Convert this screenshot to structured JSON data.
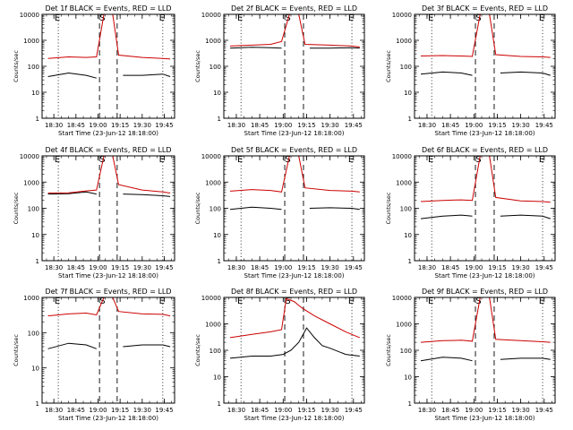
{
  "figure": {
    "xlabel": "Start Time (23-Jun-12 18:18:00)",
    "ylabel": "Counts/sec",
    "x_tick_labels": [
      "18:30",
      "18:45",
      "19:00",
      "19:15",
      "19:30",
      "19:45"
    ],
    "y_tick_labels": [
      "1",
      "10",
      "100",
      "1000",
      "10000"
    ],
    "event_markers": [
      "E",
      "S",
      "E"
    ]
  },
  "colors": {
    "events": "#000000",
    "lld": "#cc0000",
    "background": "#ffffff"
  },
  "chart_data": [
    {
      "type": "line",
      "title": "Det 1f BLACK = Events, RED = LLD",
      "xlabel": "Start Time (23-Jun-12 18:18:00)",
      "ylabel": "Counts/sec",
      "ylog": true,
      "ylim": [
        1,
        10000
      ],
      "x_ticks": [
        "18:30",
        "18:45",
        "19:00",
        "19:15",
        "19:30",
        "19:45"
      ],
      "series": [
        {
          "name": "Events",
          "color": "#000000",
          "x": [
            "18:26",
            "18:40",
            "18:52",
            "18:59",
            "19:10",
            "19:17",
            "19:30",
            "19:44",
            "19:49"
          ],
          "values": [
            40,
            55,
            45,
            35,
            null,
            45,
            45,
            50,
            40
          ]
        },
        {
          "name": "LLD",
          "color": "#cc0000",
          "x": [
            "18:26",
            "18:40",
            "18:52",
            "18:59",
            "19:04",
            "19:10",
            "19:14",
            "19:30",
            "19:44",
            "19:49"
          ],
          "values": [
            200,
            230,
            220,
            230,
            10000,
            10000,
            270,
            220,
            200,
            190
          ]
        }
      ]
    },
    {
      "type": "line",
      "title": "Det 2f BLACK = Events, RED = LLD",
      "xlabel": "Start Time (23-Jun-12 18:18:00)",
      "ylabel": "Counts/sec",
      "ylog": true,
      "ylim": [
        1,
        10000
      ],
      "x_ticks": [
        "18:30",
        "18:45",
        "19:00",
        "19:15",
        "19:30",
        "19:45"
      ],
      "series": [
        {
          "name": "Events",
          "color": "#000000",
          "x": [
            "18:26",
            "18:40",
            "18:52",
            "18:59",
            "19:10",
            "19:17",
            "19:30",
            "19:44",
            "19:49"
          ],
          "values": [
            500,
            540,
            520,
            500,
            null,
            500,
            500,
            520,
            500
          ]
        },
        {
          "name": "LLD",
          "color": "#cc0000",
          "x": [
            "18:26",
            "18:40",
            "18:52",
            "18:59",
            "19:04",
            "19:10",
            "19:14",
            "19:30",
            "19:44",
            "19:49"
          ],
          "values": [
            600,
            650,
            700,
            900,
            10000,
            10000,
            700,
            650,
            600,
            550
          ]
        }
      ]
    },
    {
      "type": "line",
      "title": "Det 3f BLACK = Events, RED = LLD",
      "xlabel": "Start Time (23-Jun-12 18:18:00)",
      "ylabel": "Counts/sec",
      "ylog": true,
      "ylim": [
        1,
        10000
      ],
      "x_ticks": [
        "18:30",
        "18:45",
        "19:00",
        "19:15",
        "19:30",
        "19:45"
      ],
      "series": [
        {
          "name": "Events",
          "color": "#000000",
          "x": [
            "18:26",
            "18:40",
            "18:52",
            "18:59",
            "19:10",
            "19:17",
            "19:30",
            "19:44",
            "19:49"
          ],
          "values": [
            50,
            60,
            55,
            45,
            null,
            55,
            60,
            55,
            45
          ]
        },
        {
          "name": "LLD",
          "color": "#cc0000",
          "x": [
            "18:26",
            "18:40",
            "18:52",
            "18:59",
            "19:04",
            "19:10",
            "19:14",
            "19:30",
            "19:44",
            "19:49"
          ],
          "values": [
            250,
            260,
            250,
            240,
            10000,
            10000,
            280,
            240,
            230,
            220
          ]
        }
      ]
    },
    {
      "type": "line",
      "title": "Det 4f BLACK = Events, RED = LLD",
      "xlabel": "Start Time (23-Jun-12 18:18:00)",
      "ylabel": "Counts/sec",
      "ylog": true,
      "ylim": [
        1,
        10000
      ],
      "x_ticks": [
        "18:30",
        "18:45",
        "19:00",
        "19:15",
        "19:30",
        "19:45"
      ],
      "series": [
        {
          "name": "Events",
          "color": "#000000",
          "x": [
            "18:26",
            "18:40",
            "18:52",
            "18:59",
            "19:10",
            "19:17",
            "19:30",
            "19:44",
            "19:49"
          ],
          "values": [
            350,
            360,
            420,
            350,
            null,
            350,
            330,
            300,
            280
          ]
        },
        {
          "name": "LLD",
          "color": "#cc0000",
          "x": [
            "18:26",
            "18:40",
            "18:52",
            "18:59",
            "19:04",
            "19:10",
            "19:14",
            "19:30",
            "19:44",
            "19:49"
          ],
          "values": [
            380,
            390,
            460,
            500,
            10000,
            10000,
            800,
            500,
            420,
            380
          ]
        }
      ]
    },
    {
      "type": "line",
      "title": "Det 5f BLACK = Events, RED = LLD",
      "xlabel": "Start Time (23-Jun-12 18:18:00)",
      "ylabel": "Counts/sec",
      "ylog": true,
      "ylim": [
        1,
        10000
      ],
      "x_ticks": [
        "18:30",
        "18:45",
        "19:00",
        "19:15",
        "19:30",
        "19:45"
      ],
      "series": [
        {
          "name": "Events",
          "color": "#000000",
          "x": [
            "18:26",
            "18:40",
            "18:52",
            "18:59",
            "19:10",
            "19:17",
            "19:30",
            "19:44",
            "19:49"
          ],
          "values": [
            90,
            110,
            100,
            90,
            null,
            100,
            105,
            100,
            90
          ]
        },
        {
          "name": "LLD",
          "color": "#cc0000",
          "x": [
            "18:26",
            "18:40",
            "18:52",
            "18:59",
            "19:04",
            "19:10",
            "19:14",
            "19:30",
            "19:44",
            "19:49"
          ],
          "values": [
            450,
            520,
            480,
            420,
            10000,
            10000,
            600,
            480,
            450,
            420
          ]
        }
      ]
    },
    {
      "type": "line",
      "title": "Det 6f BLACK = Events, RED = LLD",
      "xlabel": "Start Time (23-Jun-12 18:18:00)",
      "ylabel": "Counts/sec",
      "ylog": true,
      "ylim": [
        1,
        10000
      ],
      "x_ticks": [
        "18:30",
        "18:45",
        "19:00",
        "19:15",
        "19:30",
        "19:45"
      ],
      "series": [
        {
          "name": "Events",
          "color": "#000000",
          "x": [
            "18:26",
            "18:40",
            "18:52",
            "18:59",
            "19:10",
            "19:17",
            "19:30",
            "19:44",
            "19:49"
          ],
          "values": [
            40,
            50,
            55,
            50,
            null,
            50,
            55,
            50,
            40
          ]
        },
        {
          "name": "LLD",
          "color": "#cc0000",
          "x": [
            "18:26",
            "18:40",
            "18:52",
            "18:59",
            "19:04",
            "19:10",
            "19:14",
            "19:30",
            "19:44",
            "19:49"
          ],
          "values": [
            180,
            200,
            210,
            200,
            10000,
            10000,
            260,
            190,
            180,
            170
          ]
        }
      ]
    },
    {
      "type": "line",
      "title": "Det 7f BLACK = Events, RED = LLD",
      "xlabel": "Start Time (23-Jun-12 18:18:00)",
      "ylabel": "Counts/sec",
      "ylog": true,
      "ylim": [
        1,
        1000
      ],
      "x_ticks": [
        "18:30",
        "18:45",
        "19:00",
        "19:15",
        "19:30",
        "19:45"
      ],
      "series": [
        {
          "name": "Events",
          "color": "#000000",
          "x": [
            "18:26",
            "18:40",
            "18:52",
            "18:59",
            "19:10",
            "19:17",
            "19:30",
            "19:44",
            "19:49"
          ],
          "values": [
            35,
            50,
            45,
            35,
            null,
            40,
            45,
            45,
            40
          ]
        },
        {
          "name": "LLD",
          "color": "#cc0000",
          "x": [
            "18:26",
            "18:40",
            "18:52",
            "18:59",
            "19:04",
            "19:10",
            "19:14",
            "19:30",
            "19:44",
            "19:49"
          ],
          "values": [
            300,
            340,
            360,
            320,
            1000,
            1000,
            400,
            340,
            330,
            300
          ]
        }
      ]
    },
    {
      "type": "line",
      "title": "Det 8f BLACK = Events, RED = LLD",
      "xlabel": "Start Time (23-Jun-12 18:18:00)",
      "ylabel": "Counts/sec",
      "ylog": true,
      "ylim": [
        1,
        10000
      ],
      "x_ticks": [
        "18:30",
        "18:45",
        "19:00",
        "19:15",
        "19:30",
        "19:45"
      ],
      "series": [
        {
          "name": "Events",
          "color": "#000000",
          "x": [
            "18:26",
            "18:40",
            "18:52",
            "19:00",
            "19:05",
            "19:10",
            "19:15",
            "19:20",
            "19:25",
            "19:30",
            "19:40",
            "19:49"
          ],
          "values": [
            50,
            60,
            60,
            70,
            100,
            200,
            700,
            300,
            150,
            120,
            70,
            60
          ]
        },
        {
          "name": "LLD",
          "color": "#cc0000",
          "x": [
            "18:26",
            "18:40",
            "18:52",
            "18:59",
            "19:02",
            "19:07",
            "19:12",
            "19:20",
            "19:30",
            "19:40",
            "19:49"
          ],
          "values": [
            300,
            400,
            500,
            600,
            9000,
            7000,
            4000,
            2000,
            1000,
            500,
            300
          ]
        }
      ]
    },
    {
      "type": "line",
      "title": "Det 9f BLACK = Events, RED = LLD",
      "xlabel": "Start Time (23-Jun-12 18:18:00)",
      "ylabel": "Counts/sec",
      "ylog": true,
      "ylim": [
        1,
        10000
      ],
      "x_ticks": [
        "18:30",
        "18:45",
        "19:00",
        "19:15",
        "19:30",
        "19:45"
      ],
      "series": [
        {
          "name": "Events",
          "color": "#000000",
          "x": [
            "18:26",
            "18:40",
            "18:52",
            "18:59",
            "19:10",
            "19:17",
            "19:30",
            "19:44",
            "19:49"
          ],
          "values": [
            40,
            55,
            50,
            40,
            null,
            45,
            50,
            50,
            45
          ]
        },
        {
          "name": "LLD",
          "color": "#cc0000",
          "x": [
            "18:26",
            "18:40",
            "18:52",
            "18:59",
            "19:04",
            "19:10",
            "19:14",
            "19:30",
            "19:44",
            "19:49"
          ],
          "values": [
            200,
            230,
            240,
            220,
            10000,
            10000,
            260,
            230,
            210,
            200
          ]
        }
      ]
    }
  ]
}
